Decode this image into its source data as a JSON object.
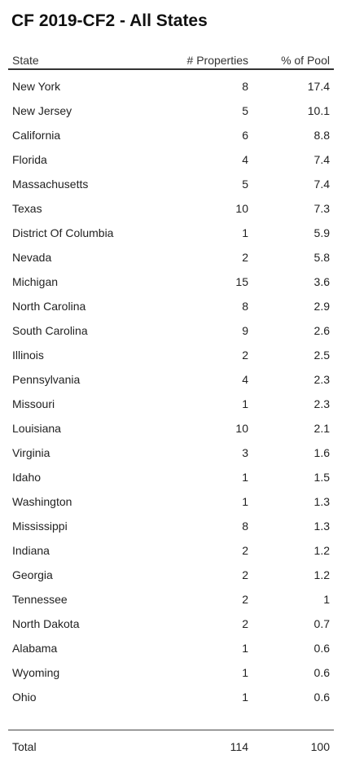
{
  "title": "CF 2019-CF2 - All States",
  "columns": {
    "state": "State",
    "properties": "# Properties",
    "pool": "% of Pool"
  },
  "rows": [
    {
      "state": "New York",
      "properties": "8",
      "pool": "17.4"
    },
    {
      "state": "New Jersey",
      "properties": "5",
      "pool": "10.1"
    },
    {
      "state": "California",
      "properties": "6",
      "pool": "8.8"
    },
    {
      "state": "Florida",
      "properties": "4",
      "pool": "7.4"
    },
    {
      "state": "Massachusetts",
      "properties": "5",
      "pool": "7.4"
    },
    {
      "state": "Texas",
      "properties": "10",
      "pool": "7.3"
    },
    {
      "state": "District Of Columbia",
      "properties": "1",
      "pool": "5.9"
    },
    {
      "state": "Nevada",
      "properties": "2",
      "pool": "5.8"
    },
    {
      "state": "Michigan",
      "properties": "15",
      "pool": "3.6"
    },
    {
      "state": "North Carolina",
      "properties": "8",
      "pool": "2.9"
    },
    {
      "state": "South Carolina",
      "properties": "9",
      "pool": "2.6"
    },
    {
      "state": "Illinois",
      "properties": "2",
      "pool": "2.5"
    },
    {
      "state": "Pennsylvania",
      "properties": "4",
      "pool": "2.3"
    },
    {
      "state": "Missouri",
      "properties": "1",
      "pool": "2.3"
    },
    {
      "state": "Louisiana",
      "properties": "10",
      "pool": "2.1"
    },
    {
      "state": "Virginia",
      "properties": "3",
      "pool": "1.6"
    },
    {
      "state": "Idaho",
      "properties": "1",
      "pool": "1.5"
    },
    {
      "state": "Washington",
      "properties": "1",
      "pool": "1.3"
    },
    {
      "state": "Mississippi",
      "properties": "8",
      "pool": "1.3"
    },
    {
      "state": "Indiana",
      "properties": "2",
      "pool": "1.2"
    },
    {
      "state": "Georgia",
      "properties": "2",
      "pool": "1.2"
    },
    {
      "state": "Tennessee",
      "properties": "2",
      "pool": "1"
    },
    {
      "state": "North Dakota",
      "properties": "2",
      "pool": "0.7"
    },
    {
      "state": "Alabama",
      "properties": "1",
      "pool": "0.6"
    },
    {
      "state": "Wyoming",
      "properties": "1",
      "pool": "0.6"
    },
    {
      "state": "Ohio",
      "properties": "1",
      "pool": "0.6"
    }
  ],
  "total": {
    "label": "Total",
    "properties": "114",
    "pool": "100"
  }
}
